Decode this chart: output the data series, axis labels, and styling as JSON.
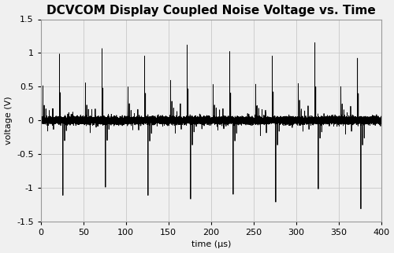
{
  "title": "DCVCOM Display Coupled Noise Voltage vs. Time",
  "xlabel": "time (μs)",
  "ylabel": "voltage (V)",
  "xlim": [
    0,
    400
  ],
  "ylim": [
    -1.5,
    1.5
  ],
  "xticks": [
    0,
    50,
    100,
    150,
    200,
    250,
    300,
    350,
    400
  ],
  "yticks": [
    -1.5,
    -1.0,
    -0.5,
    0.0,
    0.5,
    1.0,
    1.5
  ],
  "line_color": "#000000",
  "background_color": "#f0f0f0",
  "grid_color": "#c8c8c8",
  "title_fontsize": 11,
  "label_fontsize": 8,
  "tick_fontsize": 8,
  "period": 50,
  "seed": 7
}
